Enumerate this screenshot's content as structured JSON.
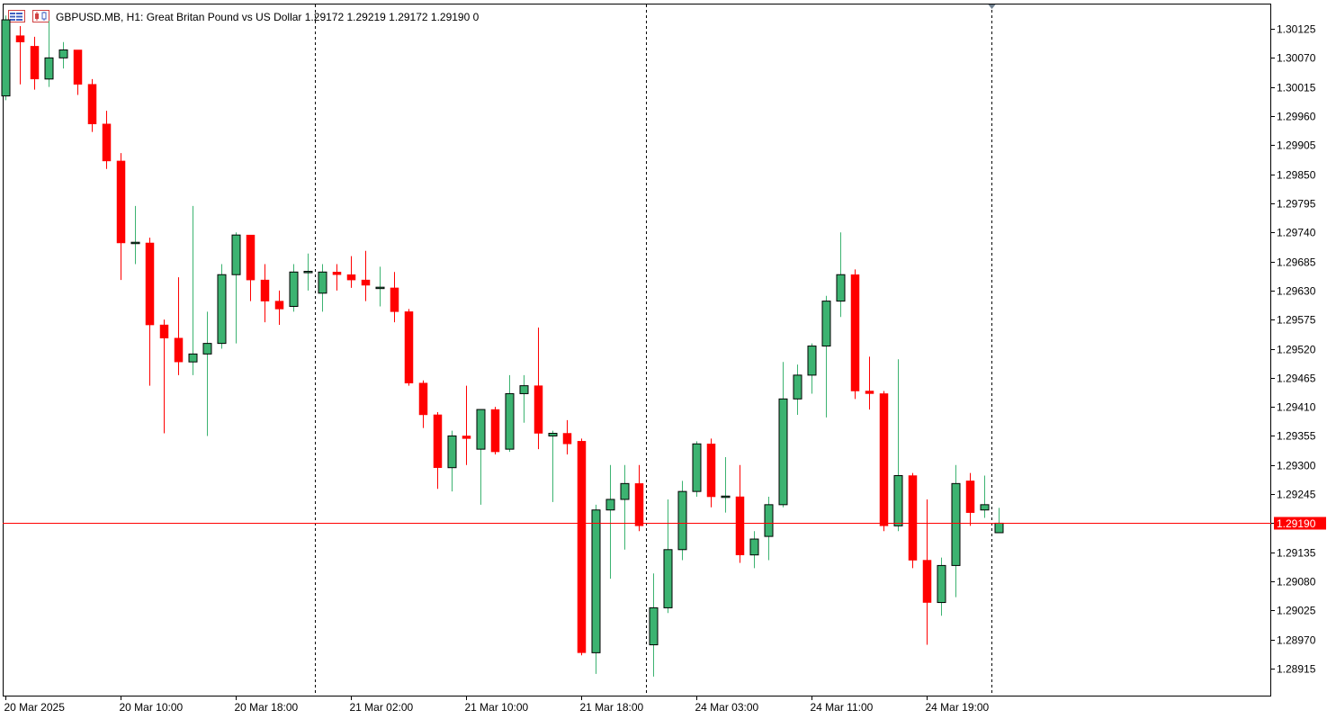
{
  "header": {
    "symbol_info": "GBPUSD.MB, H1:  Great Britan Pound vs US Dollar  1.29172 1.29219 1.29172 1.29190  0"
  },
  "icons": {
    "menu": "list-menu-icon",
    "chart_type": "candlestick-chart-icon"
  },
  "colors": {
    "bull": "#3cb371",
    "bear": "#ff0000",
    "outline": "#000000",
    "price_line": "#ff0000",
    "background": "#ffffff"
  },
  "chart_data": {
    "type": "candlestick",
    "symbol": "GBPUSD.MB",
    "timeframe": "H1",
    "description": "Great Britan Pound vs US Dollar",
    "ylim": [
      1.28885,
      1.30165
    ],
    "y_ticks": [
      "1.30125",
      "1.30070",
      "1.30015",
      "1.29960",
      "1.29905",
      "1.29850",
      "1.29795",
      "1.29740",
      "1.29685",
      "1.29630",
      "1.29575",
      "1.29520",
      "1.29465",
      "1.29410",
      "1.29355",
      "1.29300",
      "1.29245",
      "1.29190",
      "1.29135",
      "1.29080",
      "1.29025",
      "1.28970",
      "1.28915"
    ],
    "x_labels": [
      {
        "label": "20 Mar 2025",
        "index": 0
      },
      {
        "label": "20 Mar 10:00",
        "index": 8
      },
      {
        "label": "20 Mar 18:00",
        "index": 16
      },
      {
        "label": "21 Mar 02:00",
        "index": 24
      },
      {
        "label": "21 Mar 10:00",
        "index": 32
      },
      {
        "label": "21 Mar 18:00",
        "index": 40
      },
      {
        "label": "24 Mar 03:00",
        "index": 48
      },
      {
        "label": "24 Mar 11:00",
        "index": 56
      },
      {
        "label": "24 Mar 19:00",
        "index": 64
      }
    ],
    "period_separators": [
      21.5,
      44.5,
      68.5
    ],
    "current_price": 1.2919,
    "current_price_label": "1.29190",
    "candles": [
      [
        1.29998,
        1.3015,
        1.2999,
        1.30142
      ],
      [
        1.30112,
        1.3013,
        1.3002,
        1.301
      ],
      [
        1.30092,
        1.3011,
        1.3001,
        1.3003
      ],
      [
        1.3003,
        1.3014,
        1.30015,
        1.3007
      ],
      [
        1.3007,
        1.301,
        1.3005,
        1.30085
      ],
      [
        1.30085,
        1.30085,
        1.3,
        1.3002
      ],
      [
        1.3002,
        1.3003,
        1.2993,
        1.29945
      ],
      [
        1.29945,
        1.2997,
        1.2986,
        1.29875
      ],
      [
        1.29875,
        1.2989,
        1.2965,
        1.2972
      ],
      [
        1.2972,
        1.2979,
        1.2968,
        1.2972
      ],
      [
        1.2972,
        1.2973,
        1.2945,
        1.29565
      ],
      [
        1.29565,
        1.29575,
        1.2936,
        1.2954
      ],
      [
        1.2954,
        1.29655,
        1.2947,
        1.29495
      ],
      [
        1.29495,
        1.2979,
        1.2947,
        1.2951
      ],
      [
        1.2951,
        1.2959,
        1.29355,
        1.2953
      ],
      [
        1.2953,
        1.2968,
        1.2952,
        1.2966
      ],
      [
        1.2966,
        1.2974,
        1.2953,
        1.29735
      ],
      [
        1.29735,
        1.29735,
        1.2961,
        1.2965
      ],
      [
        1.2965,
        1.2968,
        1.2957,
        1.2961
      ],
      [
        1.2961,
        1.2963,
        1.29565,
        1.29595
      ],
      [
        1.296,
        1.2968,
        1.2959,
        1.29665
      ],
      [
        1.29665,
        1.297,
        1.2963,
        1.29665
      ],
      [
        1.29625,
        1.2968,
        1.2959,
        1.29665
      ],
      [
        1.29665,
        1.2968,
        1.2963,
        1.2966
      ],
      [
        1.2966,
        1.29695,
        1.29635,
        1.2965
      ],
      [
        1.2965,
        1.29705,
        1.2961,
        1.2964
      ],
      [
        1.29635,
        1.29675,
        1.296,
        1.29635
      ],
      [
        1.29635,
        1.29665,
        1.2957,
        1.2959
      ],
      [
        1.2959,
        1.29595,
        1.2945,
        1.29455
      ],
      [
        1.29455,
        1.2946,
        1.2937,
        1.29395
      ],
      [
        1.29395,
        1.294,
        1.29255,
        1.29295
      ],
      [
        1.29295,
        1.29365,
        1.2925,
        1.29355
      ],
      [
        1.29355,
        1.2945,
        1.293,
        1.2935
      ],
      [
        1.2933,
        1.29405,
        1.29225,
        1.29405
      ],
      [
        1.29405,
        1.2941,
        1.2932,
        1.29325
      ],
      [
        1.2933,
        1.2947,
        1.29325,
        1.29435
      ],
      [
        1.29435,
        1.2947,
        1.2938,
        1.2945
      ],
      [
        1.2945,
        1.2956,
        1.2933,
        1.2936
      ],
      [
        1.29355,
        1.29365,
        1.2923,
        1.2936
      ],
      [
        1.2936,
        1.29385,
        1.2932,
        1.2934
      ],
      [
        1.29345,
        1.2935,
        1.2894,
        1.28945
      ],
      [
        1.28945,
        1.29225,
        1.28905,
        1.29215
      ],
      [
        1.29215,
        1.293,
        1.29085,
        1.29235
      ],
      [
        1.29235,
        1.293,
        1.2914,
        1.29265
      ],
      [
        1.29265,
        1.293,
        1.29175,
        1.29185
      ],
      [
        1.2896,
        1.29095,
        1.289,
        1.2903
      ],
      [
        1.2903,
        1.29235,
        1.2902,
        1.2914
      ],
      [
        1.2914,
        1.2927,
        1.2912,
        1.2925
      ],
      [
        1.2925,
        1.29345,
        1.2924,
        1.2934
      ],
      [
        1.2934,
        1.2935,
        1.2922,
        1.2924
      ],
      [
        1.2924,
        1.29315,
        1.2921,
        1.2924
      ],
      [
        1.2924,
        1.293,
        1.29115,
        1.2913
      ],
      [
        1.2913,
        1.29175,
        1.29105,
        1.2916
      ],
      [
        1.29165,
        1.2924,
        1.2912,
        1.29225
      ],
      [
        1.29225,
        1.29495,
        1.2922,
        1.29425
      ],
      [
        1.29425,
        1.2949,
        1.29395,
        1.2947
      ],
      [
        1.2947,
        1.2953,
        1.29435,
        1.29525
      ],
      [
        1.29525,
        1.2962,
        1.2939,
        1.2961
      ],
      [
        1.2961,
        1.2974,
        1.2958,
        1.2966
      ],
      [
        1.2966,
        1.2967,
        1.29425,
        1.2944
      ],
      [
        1.2944,
        1.29505,
        1.29405,
        1.29435
      ],
      [
        1.29435,
        1.2944,
        1.29175,
        1.29185
      ],
      [
        1.29185,
        1.295,
        1.29175,
        1.2928
      ],
      [
        1.2928,
        1.29285,
        1.29105,
        1.2912
      ],
      [
        1.2912,
        1.29235,
        1.2896,
        1.2904
      ],
      [
        1.2904,
        1.29125,
        1.29015,
        1.2911
      ],
      [
        1.2911,
        1.293,
        1.2905,
        1.29265
      ],
      [
        1.2927,
        1.29285,
        1.29185,
        1.2921
      ],
      [
        1.29215,
        1.2928,
        1.292,
        1.29225
      ],
      [
        1.29172,
        1.29219,
        1.29172,
        1.2919
      ]
    ]
  }
}
